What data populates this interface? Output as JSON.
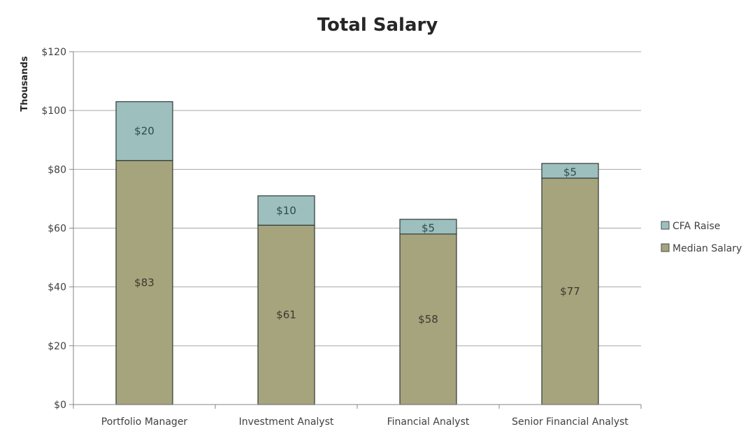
{
  "chart_data": {
    "type": "bar",
    "stacked": true,
    "title": "Total Salary",
    "xlabel": "",
    "ylabel": "Thousands",
    "ylim": [
      0,
      120
    ],
    "ytick_step": 20,
    "yticks": [
      "$0",
      "$20",
      "$40",
      "$60",
      "$80",
      "$100",
      "$120"
    ],
    "grid": true,
    "legend_position": "right",
    "categories": [
      "Portfolio Manager",
      "Investment Analyst",
      "Financial Analyst",
      "Senior Financial Analyst"
    ],
    "series": [
      {
        "name": "Median Salary",
        "color": "#a5a47d",
        "values": [
          83,
          61,
          58,
          77
        ],
        "labels": [
          "$83",
          "$61",
          "$58",
          "$77"
        ]
      },
      {
        "name": "CFA Raise",
        "color": "#9dbfbe",
        "values": [
          20,
          10,
          5,
          5
        ],
        "labels": [
          "$20",
          "$10",
          "$5",
          "$5"
        ]
      }
    ],
    "legend": [
      "CFA Raise",
      "Median Salary"
    ]
  }
}
